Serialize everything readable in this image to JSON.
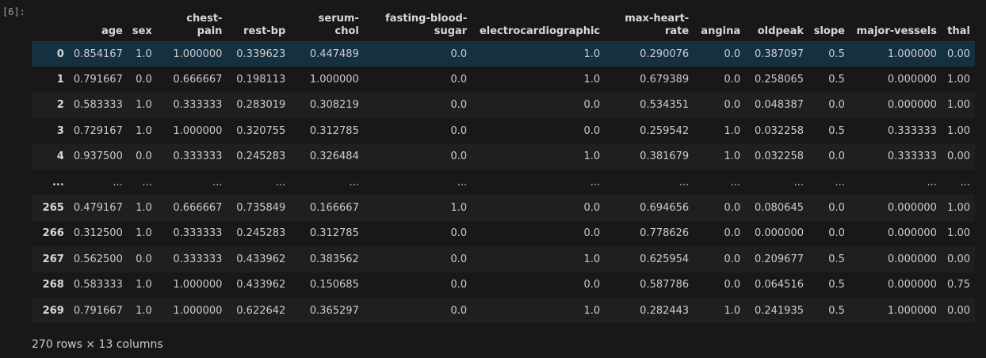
{
  "cell": {
    "execution_count": "[6]:"
  },
  "dataframe": {
    "columns": [
      "",
      "age",
      "sex",
      "chest-pain",
      "rest-bp",
      "serum-chol",
      "fasting-blood-sugar",
      "electrocardiographic",
      "max-heart-rate",
      "angina",
      "oldpeak",
      "slope",
      "major-vessels",
      "thal"
    ],
    "rows": [
      [
        "0",
        "0.854167",
        "1.0",
        "1.000000",
        "0.339623",
        "0.447489",
        "0.0",
        "1.0",
        "0.290076",
        "0.0",
        "0.387097",
        "0.5",
        "1.000000",
        "0.00"
      ],
      [
        "1",
        "0.791667",
        "0.0",
        "0.666667",
        "0.198113",
        "1.000000",
        "0.0",
        "1.0",
        "0.679389",
        "0.0",
        "0.258065",
        "0.5",
        "0.000000",
        "1.00"
      ],
      [
        "2",
        "0.583333",
        "1.0",
        "0.333333",
        "0.283019",
        "0.308219",
        "0.0",
        "0.0",
        "0.534351",
        "0.0",
        "0.048387",
        "0.0",
        "0.000000",
        "1.00"
      ],
      [
        "3",
        "0.729167",
        "1.0",
        "1.000000",
        "0.320755",
        "0.312785",
        "0.0",
        "0.0",
        "0.259542",
        "1.0",
        "0.032258",
        "0.5",
        "0.333333",
        "1.00"
      ],
      [
        "4",
        "0.937500",
        "0.0",
        "0.333333",
        "0.245283",
        "0.326484",
        "0.0",
        "1.0",
        "0.381679",
        "1.0",
        "0.032258",
        "0.0",
        "0.333333",
        "0.00"
      ],
      [
        "...",
        "...",
        "...",
        "...",
        "...",
        "...",
        "...",
        "...",
        "...",
        "...",
        "...",
        "...",
        "...",
        "..."
      ],
      [
        "265",
        "0.479167",
        "1.0",
        "0.666667",
        "0.735849",
        "0.166667",
        "1.0",
        "0.0",
        "0.694656",
        "0.0",
        "0.080645",
        "0.0",
        "0.000000",
        "1.00"
      ],
      [
        "266",
        "0.312500",
        "1.0",
        "0.333333",
        "0.245283",
        "0.312785",
        "0.0",
        "0.0",
        "0.778626",
        "0.0",
        "0.000000",
        "0.0",
        "0.000000",
        "1.00"
      ],
      [
        "267",
        "0.562500",
        "0.0",
        "0.333333",
        "0.433962",
        "0.383562",
        "0.0",
        "1.0",
        "0.625954",
        "0.0",
        "0.209677",
        "0.5",
        "0.000000",
        "0.00"
      ],
      [
        "268",
        "0.583333",
        "1.0",
        "1.000000",
        "0.433962",
        "0.150685",
        "0.0",
        "0.0",
        "0.587786",
        "0.0",
        "0.064516",
        "0.5",
        "0.000000",
        "0.75"
      ],
      [
        "269",
        "0.791667",
        "1.0",
        "1.000000",
        "0.622642",
        "0.365297",
        "0.0",
        "1.0",
        "0.282443",
        "1.0",
        "0.241935",
        "0.5",
        "1.000000",
        "0.00"
      ]
    ],
    "selected_row": 0,
    "summary": "270 rows × 13 columns"
  }
}
